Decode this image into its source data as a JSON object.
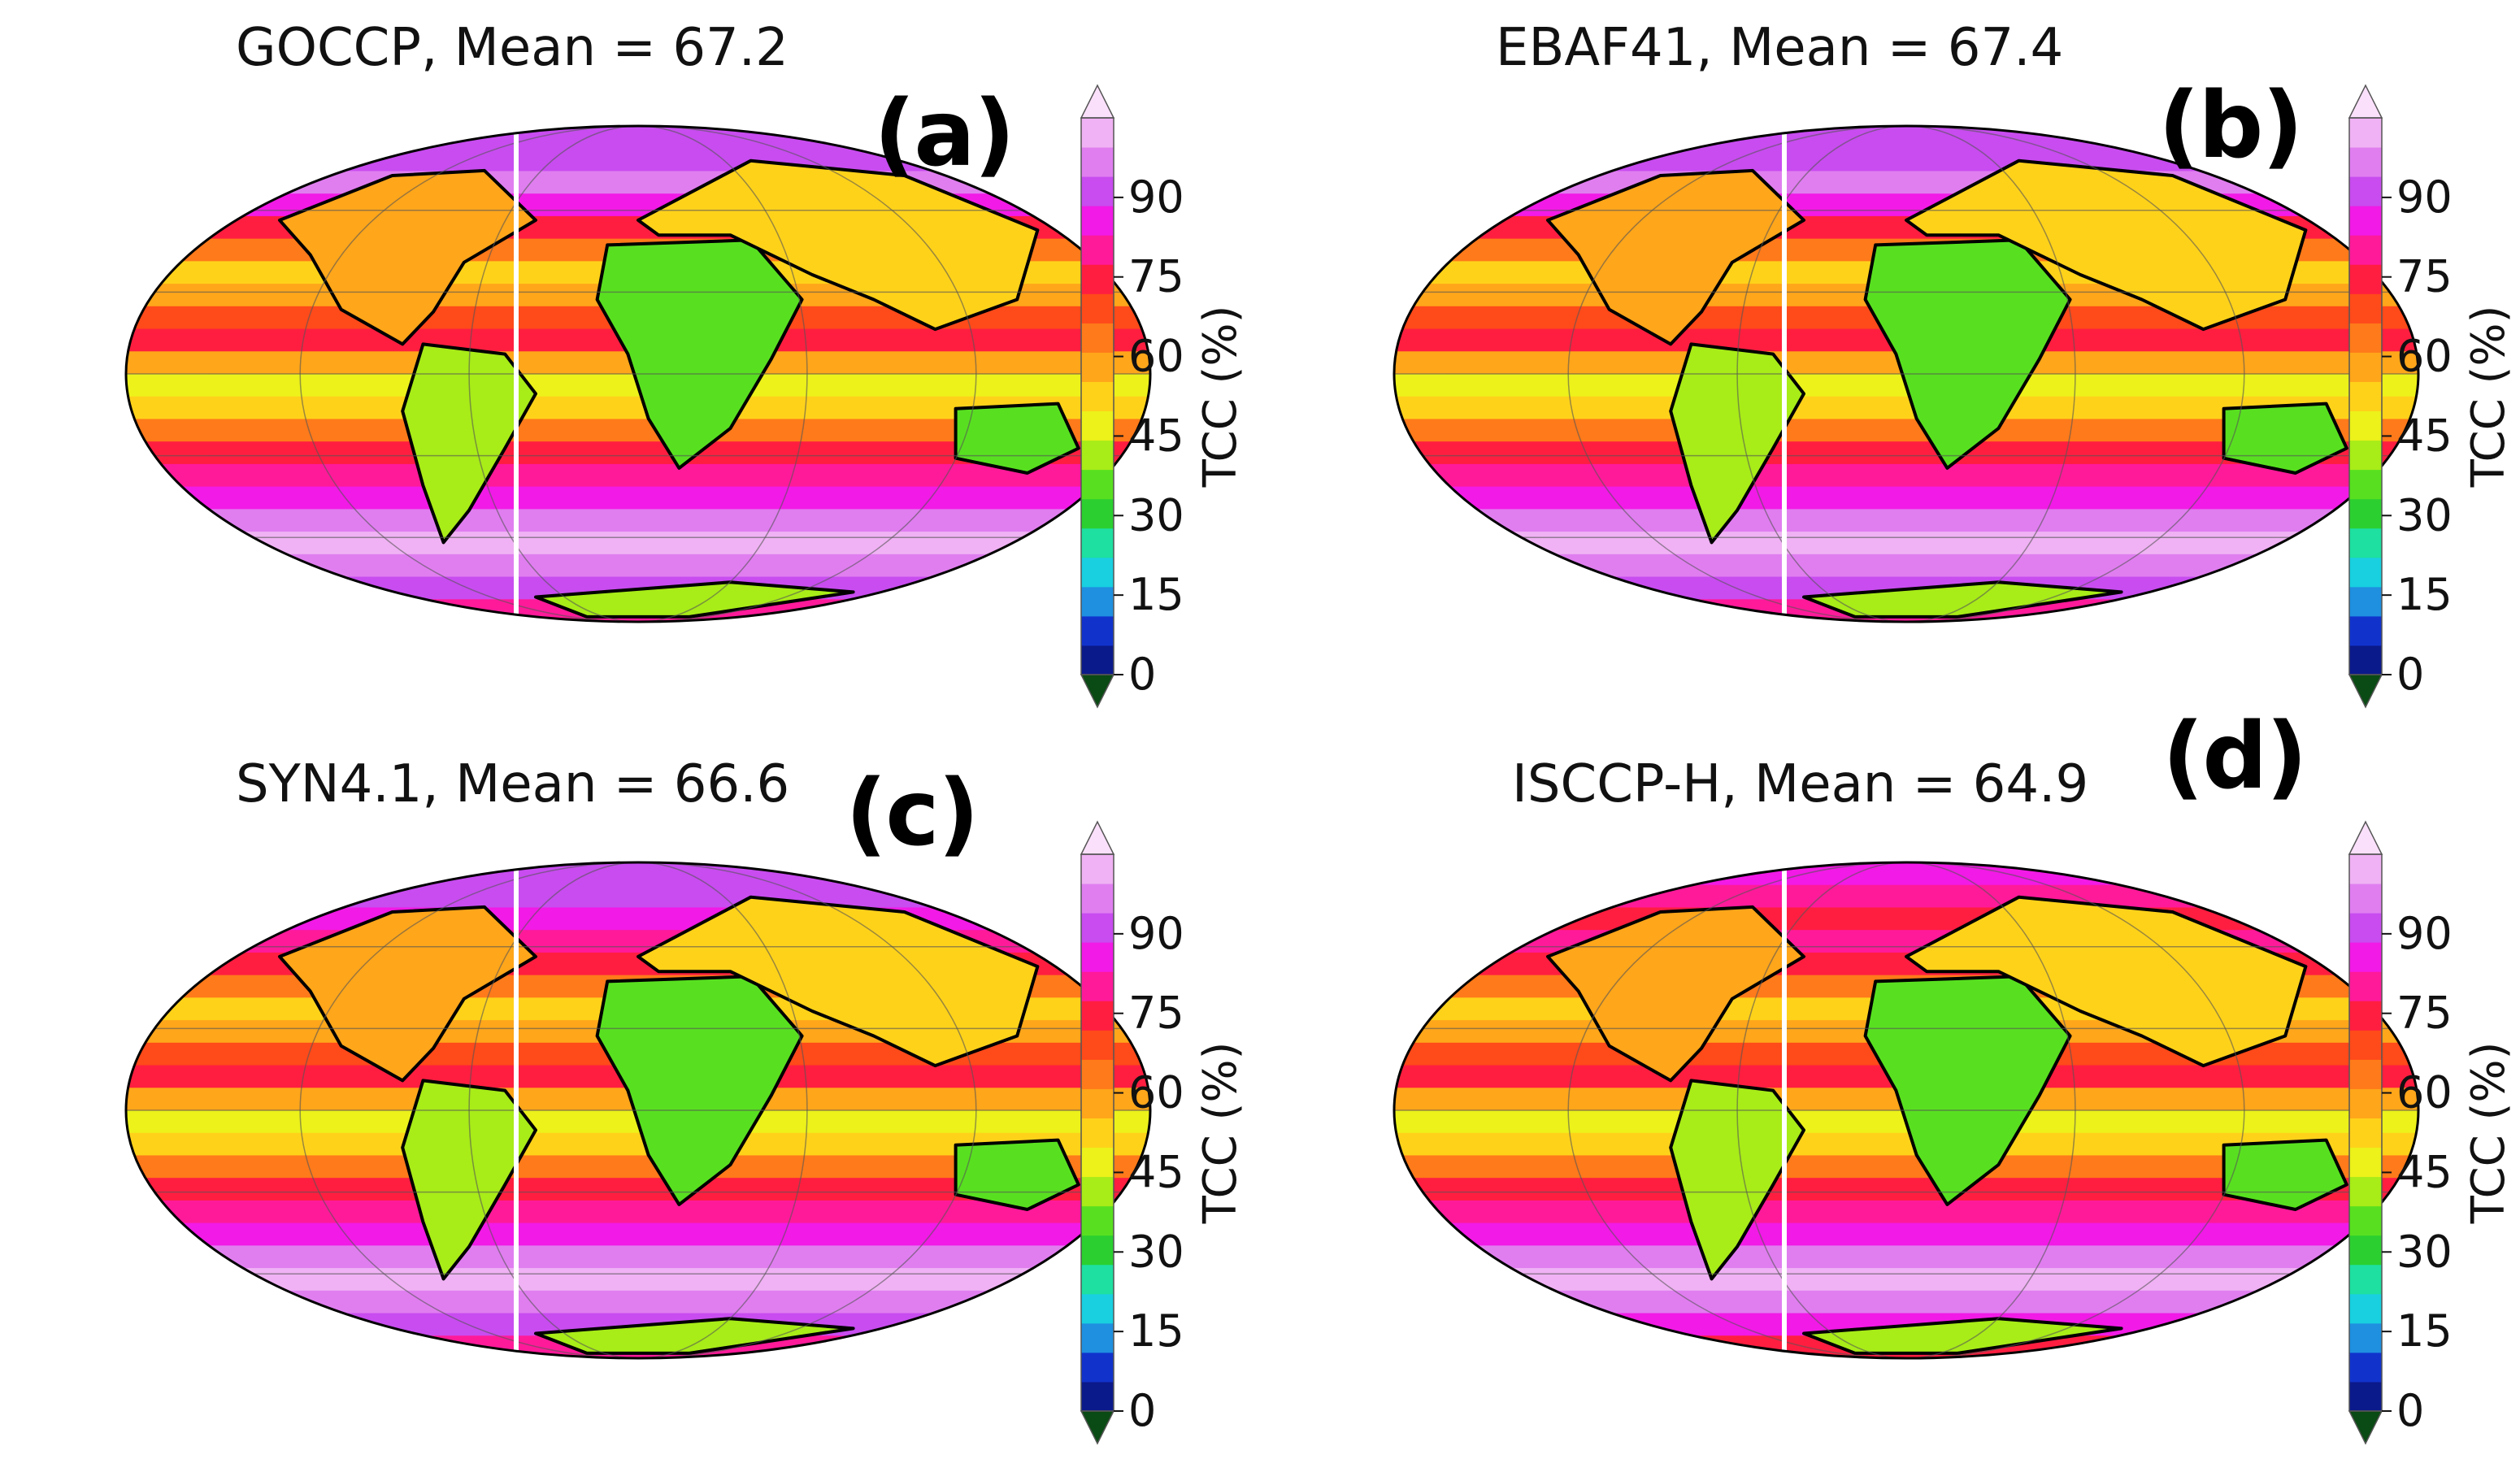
{
  "figure": {
    "panels": [
      {
        "title": "GOCCP, Mean = 67.2",
        "letter": "(a)"
      },
      {
        "title": "EBAF41, Mean = 67.4",
        "letter": "(b)"
      },
      {
        "title": "SYN4.1, Mean = 66.6",
        "letter": "(c)"
      },
      {
        "title": "ISCCP-H, Mean = 64.9",
        "letter": "(d)"
      }
    ],
    "colorbar": {
      "label": "TCC (%)",
      "ticks": [
        "0",
        "15",
        "30",
        "45",
        "60",
        "75",
        "90"
      ],
      "colors": [
        "#0a4a14",
        "#0b1a8a",
        "#1133cc",
        "#1f8fe0",
        "#18d0e0",
        "#1ee0a0",
        "#2bd030",
        "#58e020",
        "#a8ec18",
        "#ecf21a",
        "#ffd21a",
        "#ffa61a",
        "#ff7a1a",
        "#ff4a1a",
        "#ff1e40",
        "#ff1a9a",
        "#f21ae6",
        "#c84cf0",
        "#e07ef0",
        "#f0b2f4",
        "#fbe0fb"
      ]
    }
  }
}
